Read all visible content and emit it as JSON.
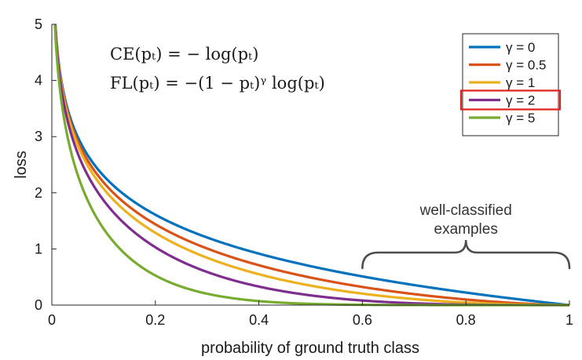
{
  "chart_data": {
    "type": "line",
    "xlabel": "probability of ground truth class",
    "ylabel": "loss",
    "xlim": [
      0,
      1
    ],
    "ylim": [
      0,
      5
    ],
    "xticks": [
      0,
      0.2,
      0.4,
      0.6,
      0.8,
      1
    ],
    "xtick_labels": [
      "0",
      "0.2",
      "0.4",
      "0.6",
      "0.8",
      "1"
    ],
    "yticks": [
      0,
      1,
      2,
      3,
      4,
      5
    ],
    "ytick_labels": [
      "0",
      "1",
      "2",
      "3",
      "4",
      "5"
    ],
    "legend_position": "top-right",
    "highlighted_series": "γ = 2",
    "highlight_color": "#e0201c",
    "formula_ce": "CE(pₜ) = − log(pₜ)",
    "formula_fl": "FL(pₜ) = −(1 − pₜ)ᵞ log(pₜ)",
    "annotation": {
      "line1": "well-classified",
      "line2": "examples",
      "x_range": [
        0.6,
        1.0
      ]
    },
    "series": [
      {
        "name": "γ = 0",
        "gamma": 0,
        "color": "#0072bd",
        "x": [
          0.007,
          0.01,
          0.02,
          0.05,
          0.1,
          0.2,
          0.3,
          0.4,
          0.5,
          0.6,
          0.7,
          0.8,
          0.9,
          1.0
        ],
        "values": [
          4.96,
          4.61,
          3.91,
          3.0,
          2.3,
          1.61,
          1.2,
          0.92,
          0.69,
          0.51,
          0.36,
          0.22,
          0.11,
          0.0
        ]
      },
      {
        "name": "γ = 0.5",
        "gamma": 0.5,
        "color": "#d95319",
        "x": [
          0.007,
          0.01,
          0.02,
          0.05,
          0.1,
          0.2,
          0.3,
          0.4,
          0.5,
          0.6,
          0.7,
          0.8,
          0.9,
          1.0
        ],
        "values": [
          4.94,
          4.58,
          3.87,
          2.92,
          2.18,
          1.44,
          1.0,
          0.71,
          0.49,
          0.32,
          0.2,
          0.1,
          0.03,
          0.0
        ]
      },
      {
        "name": "γ = 1",
        "gamma": 1,
        "color": "#edb120",
        "x": [
          0.007,
          0.01,
          0.02,
          0.05,
          0.1,
          0.2,
          0.3,
          0.4,
          0.5,
          0.6,
          0.7,
          0.8,
          0.9,
          1.0
        ],
        "values": [
          4.93,
          4.56,
          3.83,
          2.85,
          2.07,
          1.29,
          0.84,
          0.55,
          0.35,
          0.2,
          0.11,
          0.04,
          0.01,
          0.0
        ]
      },
      {
        "name": "γ = 2",
        "gamma": 2,
        "color": "#7e2f8e",
        "x": [
          0.007,
          0.01,
          0.02,
          0.05,
          0.1,
          0.2,
          0.3,
          0.4,
          0.5,
          0.6,
          0.7,
          0.8,
          0.9,
          1.0
        ],
        "values": [
          4.89,
          4.52,
          3.76,
          2.7,
          1.87,
          1.03,
          0.59,
          0.33,
          0.17,
          0.08,
          0.03,
          0.01,
          0.0,
          0.0
        ]
      },
      {
        "name": "γ = 5",
        "gamma": 5,
        "color": "#77ac30",
        "x": [
          0.007,
          0.01,
          0.02,
          0.05,
          0.1,
          0.2,
          0.3,
          0.4,
          0.5,
          0.6,
          0.7,
          0.8,
          0.9,
          1.0
        ],
        "values": [
          4.79,
          4.39,
          3.54,
          2.32,
          1.36,
          0.53,
          0.2,
          0.07,
          0.02,
          0.01,
          0.0,
          0.0,
          0.0,
          0.0
        ]
      }
    ]
  }
}
